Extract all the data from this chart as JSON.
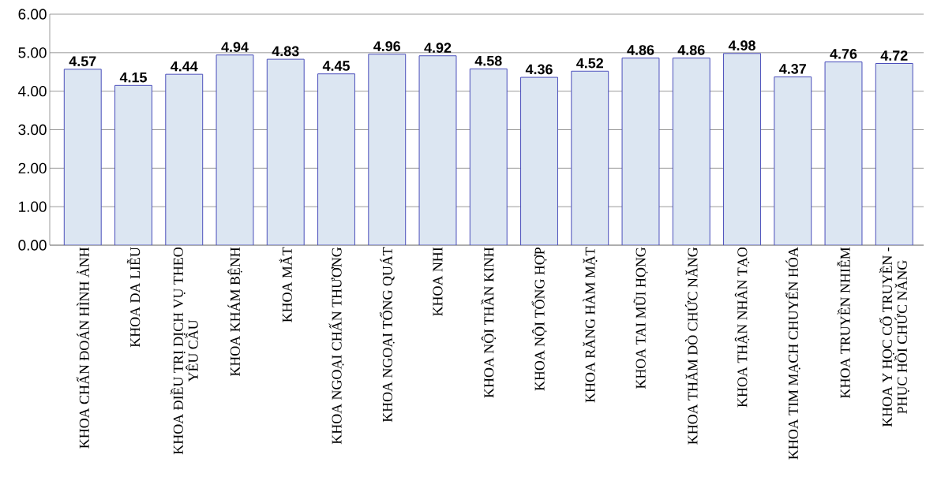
{
  "chart_data": {
    "type": "bar",
    "categories": [
      "KHOA CHẨN ĐOÁN HÌNH ẢNH",
      "KHOA DA LIỄU",
      "KHOA ĐIỀU TRỊ DỊCH VỤ THEO YÊU CẦU",
      "KHOA KHÁM BỆNH",
      "KHOA MẮT",
      "KHOA NGOẠI CHẤN THƯƠNG",
      "KHOA NGOẠI TỔNG QUÁT",
      "KHOA NHI",
      "KHOA NỘI THẦN KINH",
      "KHOA NỘI TỔNG HỢP",
      "KHOA RĂNG HÀM MẶT",
      "KHOA TAI MŨI HỌNG",
      "KHOA THĂM DÒ CHỨC NĂNG",
      "KHOA THẬN NHÂN TẠO",
      "KHOA TIM MẠCH CHUYỂN HÓA",
      "KHOA TRUYỀN NHIỄM",
      "KHOA Y HỌC CỔ TRUYỀN - PHỤC HỒI CHỨC NĂNG"
    ],
    "values": [
      4.57,
      4.15,
      4.44,
      4.94,
      4.83,
      4.45,
      4.96,
      4.92,
      4.58,
      4.36,
      4.52,
      4.86,
      4.86,
      4.98,
      4.37,
      4.76,
      4.72
    ],
    "color": "#dce6f2",
    "ylim": [
      0,
      6
    ],
    "yticks": [
      {
        "value": 0,
        "label": "0.00"
      },
      {
        "value": 1,
        "label": "1.00"
      },
      {
        "value": 2,
        "label": "2.00"
      },
      {
        "value": 3,
        "label": "3.00"
      },
      {
        "value": 4,
        "label": "4.00"
      },
      {
        "value": 5,
        "label": "5.00"
      },
      {
        "value": 6,
        "label": "6.00"
      }
    ],
    "grid": "y",
    "data_labels": true
  }
}
